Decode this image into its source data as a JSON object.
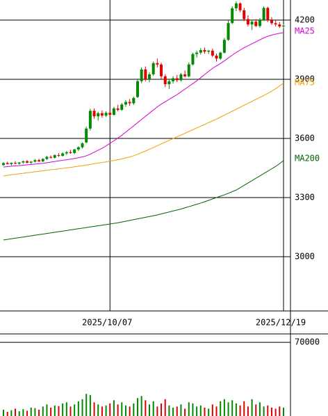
{
  "chart_data": [
    {
      "type": "candlestick",
      "categories": [
        null,
        null,
        null,
        null,
        null,
        null,
        null,
        null,
        null,
        null,
        null,
        null,
        null,
        null,
        null,
        null,
        null,
        null,
        null,
        null,
        null,
        null,
        null,
        null,
        null,
        null,
        null,
        "2025/10/07",
        null,
        null,
        null,
        null,
        null,
        null,
        null,
        null,
        null,
        null,
        null,
        null,
        null,
        null,
        null,
        null,
        null,
        null,
        null,
        null,
        null,
        null,
        null,
        null,
        null,
        null,
        null,
        null,
        null,
        null,
        null,
        null,
        null,
        null,
        null,
        null,
        null,
        null,
        null,
        null,
        null,
        null,
        null,
        "2025/12/19"
      ],
      "ohlc": [
        [
          3465,
          3480,
          3460,
          3475
        ],
        [
          3475,
          3482,
          3468,
          3470
        ],
        [
          3470,
          3478,
          3462,
          3476
        ],
        [
          3476,
          3485,
          3470,
          3472
        ],
        [
          3472,
          3480,
          3466,
          3478
        ],
        [
          3478,
          3488,
          3472,
          3484
        ],
        [
          3484,
          3490,
          3474,
          3477
        ],
        [
          3477,
          3486,
          3470,
          3482
        ],
        [
          3482,
          3495,
          3478,
          3490
        ],
        [
          3490,
          3496,
          3480,
          3484
        ],
        [
          3484,
          3500,
          3480,
          3496
        ],
        [
          3496,
          3512,
          3490,
          3506
        ],
        [
          3506,
          3514,
          3498,
          3502
        ],
        [
          3502,
          3520,
          3498,
          3515
        ],
        [
          3515,
          3525,
          3506,
          3512
        ],
        [
          3512,
          3530,
          3508,
          3524
        ],
        [
          3524,
          3536,
          3516,
          3530
        ],
        [
          3530,
          3542,
          3522,
          3526
        ],
        [
          3526,
          3548,
          3520,
          3544
        ],
        [
          3544,
          3560,
          3536,
          3555
        ],
        [
          3555,
          3580,
          3548,
          3575
        ],
        [
          3580,
          3660,
          3575,
          3650
        ],
        [
          3650,
          3750,
          3640,
          3740
        ],
        [
          3740,
          3752,
          3700,
          3712
        ],
        [
          3712,
          3735,
          3690,
          3728
        ],
        [
          3728,
          3742,
          3705,
          3716
        ],
        [
          3716,
          3738,
          3708,
          3730
        ],
        [
          3730,
          3748,
          3712,
          3720
        ],
        [
          3720,
          3760,
          3715,
          3752
        ],
        [
          3752,
          3770,
          3738,
          3745
        ],
        [
          3745,
          3780,
          3740,
          3772
        ],
        [
          3772,
          3795,
          3760,
          3785
        ],
        [
          3785,
          3800,
          3765,
          3778
        ],
        [
          3778,
          3812,
          3770,
          3805
        ],
        [
          3810,
          3900,
          3805,
          3890
        ],
        [
          3890,
          3960,
          3880,
          3950
        ],
        [
          3950,
          3965,
          3890,
          3900
        ],
        [
          3900,
          3935,
          3885,
          3925
        ],
        [
          3925,
          3990,
          3918,
          3982
        ],
        [
          3982,
          4005,
          3960,
          3975
        ],
        [
          3975,
          3985,
          3900,
          3915
        ],
        [
          3915,
          3925,
          3860,
          3875
        ],
        [
          3875,
          3900,
          3850,
          3890
        ],
        [
          3890,
          3915,
          3878,
          3905
        ],
        [
          3905,
          3922,
          3885,
          3895
        ],
        [
          3895,
          3932,
          3888,
          3925
        ],
        [
          3925,
          3945,
          3910,
          3915
        ],
        [
          3915,
          3985,
          3910,
          3975
        ],
        [
          3975,
          4035,
          3970,
          4028
        ],
        [
          4028,
          4045,
          4010,
          4035
        ],
        [
          4035,
          4058,
          4025,
          4048
        ],
        [
          4048,
          4060,
          4030,
          4040
        ],
        [
          4040,
          4050,
          4028,
          4045
        ],
        [
          4045,
          4055,
          4012,
          4020
        ],
        [
          4020,
          4030,
          3990,
          4005
        ],
        [
          4005,
          4040,
          3998,
          4035
        ],
        [
          4035,
          4110,
          4030,
          4100
        ],
        [
          4100,
          4200,
          4095,
          4185
        ],
        [
          4185,
          4270,
          4180,
          4260
        ],
        [
          4260,
          4295,
          4245,
          4285
        ],
        [
          4285,
          4290,
          4240,
          4250
        ],
        [
          4250,
          4262,
          4195,
          4205
        ],
        [
          4205,
          4225,
          4168,
          4178
        ],
        [
          4178,
          4200,
          4150,
          4192
        ],
        [
          4192,
          4205,
          4165,
          4170
        ],
        [
          4170,
          4210,
          4162,
          4200
        ],
        [
          4200,
          4270,
          4195,
          4262
        ],
        [
          4262,
          4268,
          4190,
          4198
        ],
        [
          4198,
          4215,
          4176,
          4184
        ],
        [
          4184,
          4200,
          4168,
          4178
        ],
        [
          4178,
          4190,
          4160,
          4168
        ],
        [
          4168,
          4180,
          4158,
          4172
        ]
      ],
      "up_color": "#008a00",
      "down_color": "#e00000",
      "series": [
        {
          "name": "MA25",
          "color": "#d400d4",
          "values": [
            3455,
            3457,
            3459,
            3461,
            3462,
            3464,
            3466,
            3468,
            3470,
            3472,
            3474,
            3477,
            3480,
            3483,
            3486,
            3489,
            3492,
            3495,
            3498,
            3502,
            3506,
            3512,
            3520,
            3530,
            3540,
            3550,
            3562,
            3575,
            3588,
            3602,
            3616,
            3632,
            3648,
            3664,
            3680,
            3696,
            3712,
            3728,
            3744,
            3760,
            3774,
            3786,
            3798,
            3810,
            3822,
            3836,
            3850,
            3864,
            3878,
            3892,
            3908,
            3924,
            3940,
            3955,
            3968,
            3980,
            3993,
            4008,
            4022,
            4036,
            4048,
            4060,
            4070,
            4080,
            4090,
            4100,
            4110,
            4118,
            4124,
            4129,
            4133,
            4136
          ]
        },
        {
          "name": "MA75",
          "color": "#f0a000",
          "values": [
            3410,
            3413,
            3416,
            3418,
            3421,
            3423,
            3426,
            3428,
            3431,
            3433,
            3436,
            3438,
            3441,
            3443,
            3446,
            3448,
            3451,
            3453,
            3456,
            3459,
            3462,
            3465,
            3468,
            3472,
            3475,
            3478,
            3481,
            3485,
            3488,
            3492,
            3496,
            3501,
            3506,
            3512,
            3520,
            3528,
            3536,
            3545,
            3554,
            3563,
            3572,
            3581,
            3590,
            3599,
            3608,
            3617,
            3626,
            3635,
            3644,
            3653,
            3662,
            3671,
            3680,
            3689,
            3698,
            3708,
            3718,
            3728,
            3738,
            3748,
            3758,
            3768,
            3778,
            3788,
            3798,
            3808,
            3818,
            3828,
            3840,
            3852,
            3866,
            3880
          ]
        },
        {
          "name": "MA200",
          "color": "#006400",
          "values": [
            3085,
            3088,
            3091,
            3094,
            3097,
            3100,
            3103,
            3106,
            3109,
            3112,
            3115,
            3118,
            3121,
            3124,
            3127,
            3130,
            3133,
            3136,
            3139,
            3142,
            3145,
            3148,
            3151,
            3154,
            3157,
            3160,
            3163,
            3166,
            3169,
            3172,
            3176,
            3180,
            3184,
            3188,
            3192,
            3196,
            3200,
            3204,
            3208,
            3212,
            3217,
            3222,
            3227,
            3232,
            3237,
            3242,
            3248,
            3254,
            3260,
            3266,
            3272,
            3279,
            3286,
            3293,
            3300,
            3307,
            3314,
            3322,
            3330,
            3338,
            3350,
            3362,
            3374,
            3386,
            3398,
            3410,
            3422,
            3434,
            3446,
            3458,
            3472,
            3488
          ]
        }
      ],
      "ylim": [
        2725,
        4302
      ],
      "yticks": [
        3000,
        3300,
        3600,
        3900,
        4200
      ],
      "grid": true
    },
    {
      "type": "bar",
      "values": [
        6000,
        4000,
        5500,
        7000,
        4500,
        6500,
        5000,
        8000,
        7500,
        6000,
        9000,
        11000,
        8000,
        10000,
        9500,
        12000,
        13000,
        9000,
        11000,
        14000,
        16000,
        21000,
        20000,
        13000,
        11000,
        9000,
        10000,
        12000,
        15000,
        11000,
        13000,
        10000,
        9000,
        12000,
        17000,
        19000,
        15000,
        11000,
        14000,
        9000,
        12000,
        16000,
        10000,
        8000,
        9000,
        11000,
        7000,
        13000,
        12000,
        9000,
        10000,
        8000,
        7000,
        11000,
        9000,
        14000,
        16000,
        13000,
        15000,
        12000,
        10000,
        14000,
        9000,
        16000,
        11000,
        13000,
        9000,
        10000,
        8000,
        7000,
        9000,
        8000
      ],
      "ylim": [
        0,
        78000
      ],
      "yticks": [
        70000
      ],
      "grid": true
    }
  ]
}
